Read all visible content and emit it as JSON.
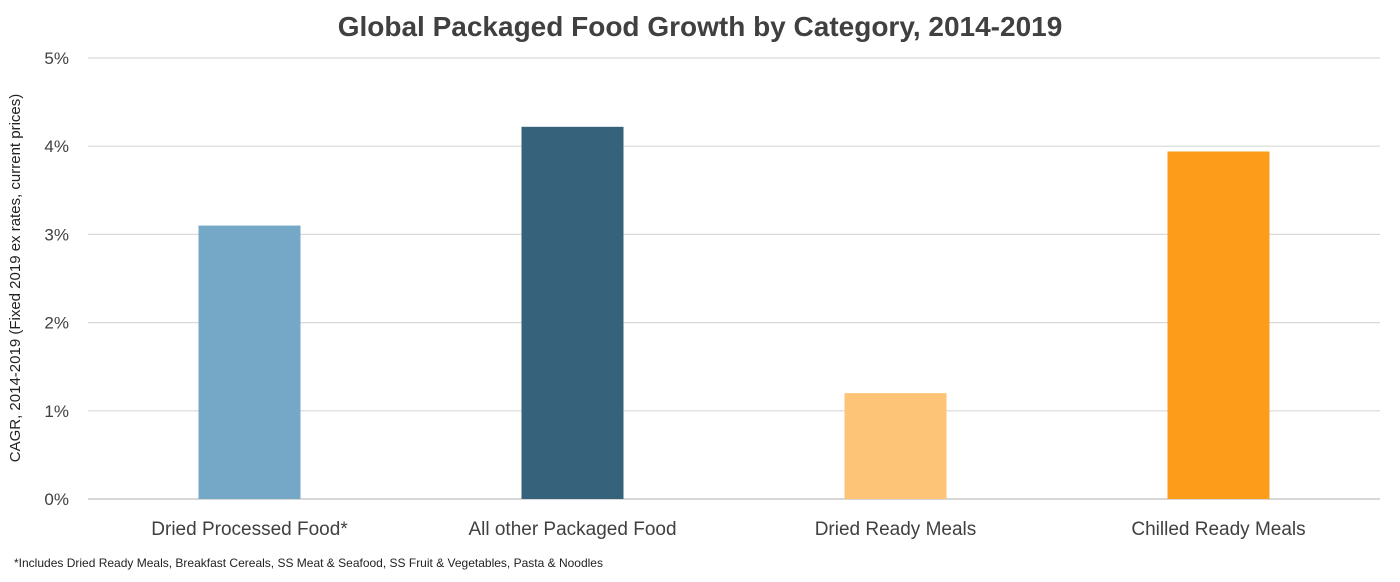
{
  "chart_data": {
    "type": "bar",
    "title": "Global Packaged Food Growth by Category, 2014-2019",
    "xlabel": "",
    "ylabel": "CAGR, 2014-2019 (Fixed 2019 ex rates, current prices)",
    "categories": [
      "Dried Processed Food*",
      "All other Packaged Food",
      "Dried Ready Meals",
      "Chilled Ready Meals"
    ],
    "values": [
      3.1,
      4.22,
      1.2,
      3.94
    ],
    "colors": [
      "#75a8c7",
      "#36637b",
      "#fdc477",
      "#fb9c1a"
    ],
    "ylim": [
      0,
      5
    ],
    "yticks": [
      0,
      1,
      2,
      3,
      4,
      5
    ],
    "ytick_labels": [
      "0%",
      "1%",
      "2%",
      "3%",
      "4%",
      "5%"
    ],
    "grid": true,
    "legend": "none",
    "footnote": "*Includes Dried Ready Meals, Breakfast Cereals, SS Meat & Seafood, SS Fruit & Vegetables, Pasta & Noodles"
  }
}
